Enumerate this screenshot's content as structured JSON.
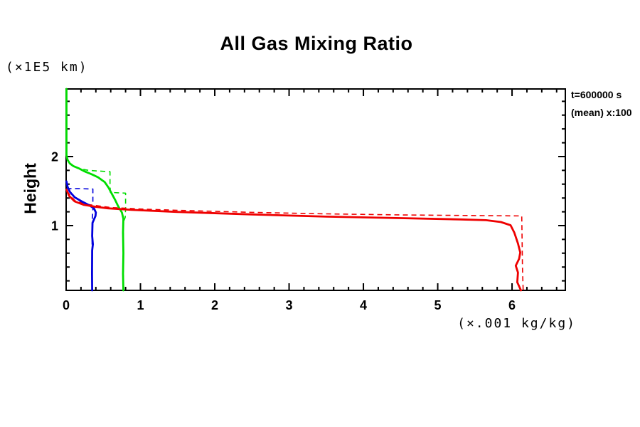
{
  "title": "All Gas Mixing Ratio",
  "y_axis": {
    "unit_label": "(×1E5 km)",
    "title": "Height"
  },
  "x_axis": {
    "unit_label": "(×.001 kg/kg)"
  },
  "annotations": {
    "time_label": "t=600000 s",
    "mean_label": "(mean) x:100"
  },
  "colors": {
    "axis": "#000000",
    "green": "#00dd00",
    "blue": "#0000dd",
    "red": "#ee0000",
    "background": "#ffffff"
  },
  "chart_data": {
    "type": "line",
    "title": "All Gas Mixing Ratio",
    "xlabel": "(×.001 kg/kg)",
    "ylabel": "Height (×1E5 km)",
    "xlim": [
      0,
      6.717
    ],
    "ylim": [
      0.062,
      2.979
    ],
    "x_major_ticks": [
      0,
      1,
      2,
      3,
      4,
      5,
      6
    ],
    "x_tick_labels": [
      "0",
      "1",
      "2",
      "3",
      "4",
      "5",
      "6"
    ],
    "y_major_ticks": [
      1,
      2
    ],
    "y_tick_labels": [
      "1",
      "2"
    ],
    "minor_tick_step": 0.2,
    "grid": false,
    "legend_position": "top-right-outside",
    "series": [
      {
        "name": "green-dashed",
        "color": "#00dd00",
        "dash": true,
        "points": [
          [
            0.03,
            1.92
          ],
          [
            0.15,
            1.83
          ],
          [
            0.3,
            1.8
          ],
          [
            0.45,
            1.79
          ],
          [
            0.59,
            1.78
          ],
          [
            0.59,
            1.6
          ],
          [
            0.595,
            1.48
          ],
          [
            0.7,
            1.475
          ],
          [
            0.8,
            1.47
          ],
          [
            0.8,
            1.25
          ],
          [
            0.795,
            1.12
          ],
          [
            0.77,
            1.05
          ],
          [
            0.77,
            0.062
          ]
        ]
      },
      {
        "name": "blue-dashed",
        "color": "#0000dd",
        "dash": true,
        "points": [
          [
            0.005,
            1.535
          ],
          [
            0.18,
            1.535
          ],
          [
            0.36,
            1.53
          ],
          [
            0.36,
            1.35
          ],
          [
            0.36,
            1.22
          ],
          [
            0.352,
            1.1
          ],
          [
            0.348,
            0.6
          ],
          [
            0.35,
            0.062
          ]
        ]
      },
      {
        "name": "red-dashed",
        "color": "#ee0000",
        "dash": true,
        "points": [
          [
            0.01,
            1.5
          ],
          [
            0.12,
            1.36
          ],
          [
            0.3,
            1.305
          ],
          [
            0.6,
            1.262
          ],
          [
            1.0,
            1.24
          ],
          [
            1.5,
            1.222
          ],
          [
            2.5,
            1.192
          ],
          [
            3.5,
            1.17
          ],
          [
            4.5,
            1.155
          ],
          [
            5.5,
            1.145
          ],
          [
            6.13,
            1.14
          ],
          [
            6.135,
            0.8
          ],
          [
            6.14,
            0.4
          ],
          [
            6.15,
            0.062
          ]
        ]
      },
      {
        "name": "green-solid",
        "color": "#00dd00",
        "dash": false,
        "points": [
          [
            0.005,
            2.979
          ],
          [
            0.005,
            2.02
          ],
          [
            0.02,
            1.95
          ],
          [
            0.05,
            1.9
          ],
          [
            0.1,
            1.86
          ],
          [
            0.17,
            1.83
          ],
          [
            0.24,
            1.79
          ],
          [
            0.35,
            1.74
          ],
          [
            0.43,
            1.7
          ],
          [
            0.52,
            1.63
          ],
          [
            0.57,
            1.55
          ],
          [
            0.62,
            1.45
          ],
          [
            0.66,
            1.37
          ],
          [
            0.7,
            1.28
          ],
          [
            0.75,
            1.19
          ],
          [
            0.77,
            1.1
          ],
          [
            0.765,
            0.9
          ],
          [
            0.77,
            0.6
          ],
          [
            0.765,
            0.3
          ],
          [
            0.77,
            0.062
          ]
        ]
      },
      {
        "name": "blue-solid",
        "color": "#0000dd",
        "dash": false,
        "points": [
          [
            0.005,
            1.64
          ],
          [
            0.02,
            1.56
          ],
          [
            0.05,
            1.49
          ],
          [
            0.115,
            1.41
          ],
          [
            0.21,
            1.35
          ],
          [
            0.31,
            1.295
          ],
          [
            0.375,
            1.25
          ],
          [
            0.4,
            1.19
          ],
          [
            0.395,
            1.14
          ],
          [
            0.375,
            1.09
          ],
          [
            0.355,
            1.04
          ],
          [
            0.35,
            0.85
          ],
          [
            0.36,
            0.73
          ],
          [
            0.35,
            0.64
          ],
          [
            0.348,
            0.3
          ],
          [
            0.35,
            0.062
          ]
        ]
      },
      {
        "name": "red-solid",
        "color": "#ee0000",
        "dash": false,
        "points": [
          [
            0.005,
            1.52
          ],
          [
            0.04,
            1.43
          ],
          [
            0.115,
            1.35
          ],
          [
            0.24,
            1.3
          ],
          [
            0.4,
            1.272
          ],
          [
            0.56,
            1.25
          ],
          [
            0.88,
            1.228
          ],
          [
            1.5,
            1.198
          ],
          [
            2.5,
            1.162
          ],
          [
            3.5,
            1.13
          ],
          [
            4.5,
            1.108
          ],
          [
            5.3,
            1.09
          ],
          [
            5.65,
            1.078
          ],
          [
            5.85,
            1.052
          ],
          [
            5.98,
            1.005
          ],
          [
            6.03,
            0.9
          ],
          [
            6.08,
            0.74
          ],
          [
            6.11,
            0.61
          ],
          [
            6.095,
            0.52
          ],
          [
            6.05,
            0.42
          ],
          [
            6.08,
            0.32
          ],
          [
            6.07,
            0.18
          ],
          [
            6.12,
            0.062
          ]
        ]
      }
    ]
  }
}
